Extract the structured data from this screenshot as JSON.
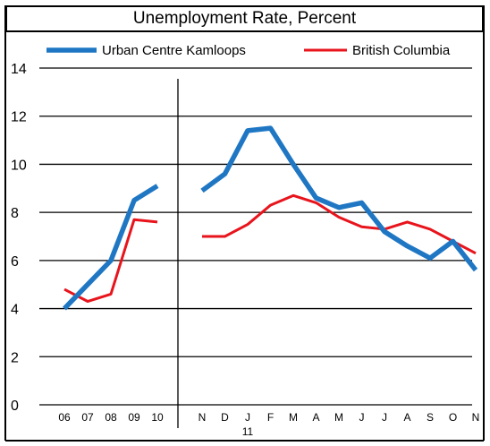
{
  "chart_data": {
    "type": "line",
    "title": "Unemployment Rate, Percent",
    "xlabel": "",
    "ylabel": "",
    "ylim": [
      0,
      14
    ],
    "yticks": [
      0,
      2,
      4,
      6,
      8,
      10,
      12,
      14
    ],
    "grid": "horizontal",
    "legend_position": "top",
    "year_sublabel": "11",
    "segments": [
      {
        "categories": [
          "06",
          "07",
          "08",
          "09",
          "10"
        ]
      },
      {
        "categories": [
          "N",
          "D",
          "J",
          "F",
          "M",
          "A",
          "M",
          "J",
          "J",
          "A",
          "S",
          "O",
          "N"
        ]
      }
    ],
    "series": [
      {
        "name": "Urban Centre Kamloops",
        "color": "#1f77c4",
        "values": [
          [
            4.0,
            5.0,
            6.0,
            8.5,
            9.1
          ],
          [
            8.9,
            9.6,
            11.4,
            11.5,
            10.0,
            8.6,
            8.2,
            8.4,
            7.2,
            6.6,
            6.1,
            6.8,
            5.6
          ]
        ]
      },
      {
        "name": "British Columbia",
        "color": "#e8141c",
        "values": [
          [
            4.8,
            4.3,
            4.6,
            7.7,
            7.6
          ],
          [
            7.0,
            7.0,
            7.5,
            8.3,
            8.7,
            8.4,
            7.8,
            7.4,
            7.3,
            7.6,
            7.3,
            6.8,
            6.3
          ]
        ]
      }
    ]
  }
}
